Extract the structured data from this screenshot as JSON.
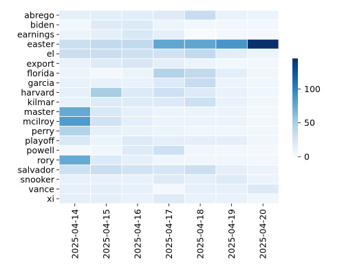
{
  "chart_data": {
    "type": "heatmap",
    "title": "",
    "xlabel": "",
    "ylabel": "",
    "x_categories": [
      "2025-04-14",
      "2025-04-15",
      "2025-04-16",
      "2025-04-17",
      "2025-04-18",
      "2025-04-19",
      "2025-04-20"
    ],
    "y_categories": [
      "abrego",
      "biden",
      "earnings",
      "easter",
      "el",
      "export",
      "florida",
      "garcia",
      "harvard",
      "kilmar",
      "master",
      "mcilroy",
      "perry",
      "playoff",
      "powell",
      "rory",
      "salvador",
      "snooker",
      "vance",
      "xi"
    ],
    "values": [
      [
        14,
        15,
        16,
        18,
        35,
        10,
        8
      ],
      [
        5,
        18,
        20,
        7,
        5,
        5,
        4
      ],
      [
        8,
        14,
        22,
        14,
        0,
        3,
        3
      ],
      [
        32,
        38,
        38,
        78,
        78,
        88,
        145
      ],
      [
        33,
        33,
        30,
        28,
        38,
        15,
        8
      ],
      [
        10,
        18,
        23,
        14,
        8,
        5,
        4
      ],
      [
        8,
        3,
        8,
        45,
        38,
        15,
        6
      ],
      [
        10,
        10,
        10,
        20,
        35,
        8,
        6
      ],
      [
        12,
        50,
        20,
        30,
        18,
        10,
        6
      ],
      [
        10,
        18,
        18,
        20,
        30,
        10,
        6
      ],
      [
        75,
        22,
        12,
        8,
        8,
        8,
        5
      ],
      [
        85,
        28,
        14,
        8,
        8,
        8,
        5
      ],
      [
        45,
        12,
        10,
        8,
        6,
        6,
        5
      ],
      [
        22,
        8,
        18,
        14,
        14,
        14,
        6
      ],
      [
        3,
        6,
        18,
        30,
        6,
        5,
        3
      ],
      [
        75,
        20,
        12,
        6,
        6,
        6,
        4
      ],
      [
        30,
        33,
        28,
        24,
        32,
        14,
        8
      ],
      [
        10,
        10,
        10,
        18,
        14,
        18,
        8
      ],
      [
        12,
        15,
        12,
        3,
        12,
        12,
        20
      ],
      [
        14,
        14,
        10,
        18,
        10,
        10,
        6
      ]
    ],
    "colorbar": {
      "min": 0,
      "max": 145,
      "ticks": [
        0,
        50,
        100
      ]
    },
    "colormap": "Blues",
    "grid_line_color": "#ffffff"
  }
}
